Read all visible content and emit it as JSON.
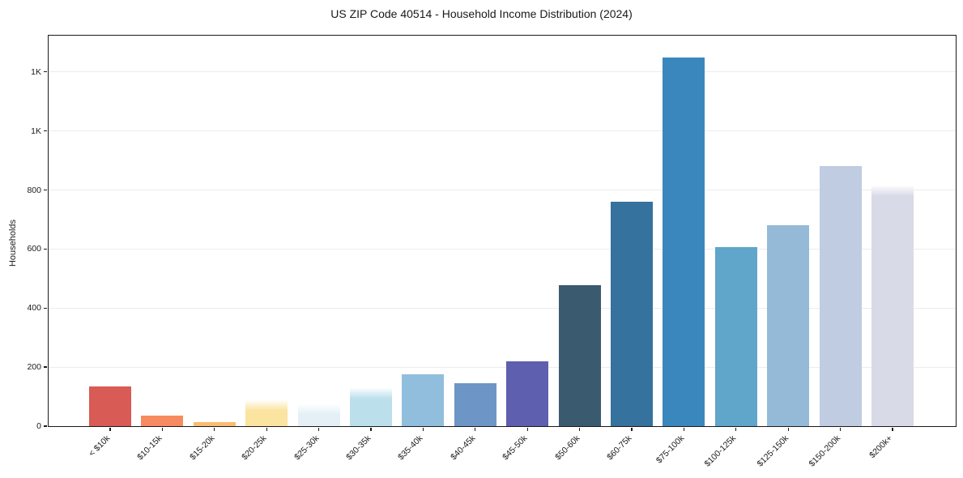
{
  "chart_data": {
    "type": "bar",
    "title": "US ZIP Code 40514 - Household Income Distribution (2024)",
    "xlabel": "",
    "ylabel": "Households",
    "ylim": [
      0,
      1320
    ],
    "grid": "horizontal",
    "grid_color": "#ececec",
    "axis_color": "#1a1a1a",
    "legend": "none",
    "yticks": [
      {
        "value": 0,
        "label": "0"
      },
      {
        "value": 200,
        "label": "200"
      },
      {
        "value": 400,
        "label": "400"
      },
      {
        "value": 600,
        "label": "600"
      },
      {
        "value": 800,
        "label": "800"
      },
      {
        "value": 1000,
        "label": "1K"
      },
      {
        "value": 1200,
        "label": "1K"
      }
    ],
    "categories": [
      "< $10k",
      "$10-15k",
      "$15-20k",
      "$20-25k",
      "$25-30k",
      "$30-35k",
      "$35-40k",
      "$40-45k",
      "$45-50k",
      "$50-60k",
      "$60-75k",
      "$75-100k",
      "$100-125k",
      "$125-150k",
      "$150-200k",
      "$200k+"
    ],
    "values": [
      135,
      36,
      15,
      87,
      74,
      129,
      176,
      146,
      219,
      477,
      760,
      1248,
      606,
      681,
      882,
      814
    ],
    "colors": [
      "#d85b55",
      "#f78a61",
      "#f8bd72",
      "#fbe3a0",
      "#e4f0f6",
      "#bcdfec",
      "#91bedd",
      "#6d96c7",
      "#5e5fae",
      "#3a5a70",
      "#35729e",
      "#3a87bd",
      "#60a5ca",
      "#95bad8",
      "#c0cce1",
      "#d9dae7"
    ],
    "soft_top": [
      false,
      false,
      false,
      true,
      true,
      true,
      false,
      false,
      false,
      false,
      false,
      false,
      false,
      false,
      false,
      true
    ]
  }
}
